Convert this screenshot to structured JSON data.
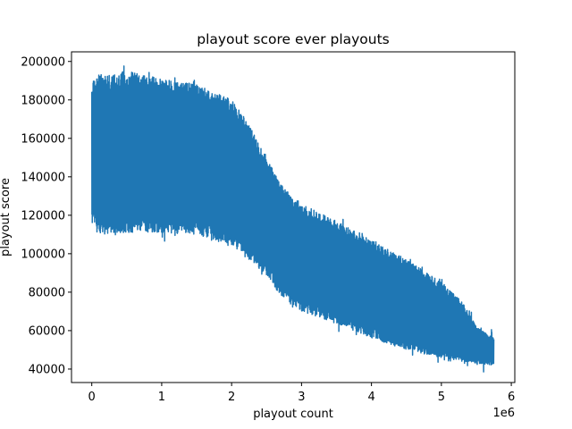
{
  "chart_data": {
    "type": "line",
    "title": "playout score ever playouts",
    "xlabel": "playout count",
    "ylabel": "playout score",
    "x_offset_label": "1e6",
    "xlim": [
      -0.29,
      6.05
    ],
    "ylim": [
      33000,
      205000
    ],
    "x_ticks": [
      0,
      1,
      2,
      3,
      4,
      5,
      6
    ],
    "x_tick_labels": [
      "0",
      "1",
      "2",
      "3",
      "4",
      "5",
      "6"
    ],
    "y_ticks": [
      40000,
      60000,
      80000,
      100000,
      120000,
      140000,
      160000,
      180000,
      200000
    ],
    "y_tick_labels": [
      "40000",
      "60000",
      "80000",
      "100000",
      "120000",
      "140000",
      "160000",
      "180000",
      "200000"
    ],
    "grid": false,
    "series": [
      {
        "color": "#1f77b4",
        "x_unit_note": "x in millions",
        "upper_envelope": [
          [
            0.0,
            190000
          ],
          [
            0.1,
            193000
          ],
          [
            0.5,
            195000
          ],
          [
            1.0,
            191000
          ],
          [
            1.5,
            188000
          ],
          [
            2.0,
            180000
          ],
          [
            2.2,
            170000
          ],
          [
            2.5,
            150000
          ],
          [
            2.7,
            136000
          ],
          [
            3.0,
            126000
          ],
          [
            3.5,
            117000
          ],
          [
            4.0,
            107000
          ],
          [
            4.5,
            97000
          ],
          [
            5.0,
            85000
          ],
          [
            5.3,
            75000
          ],
          [
            5.5,
            62000
          ],
          [
            5.75,
            56000
          ]
        ],
        "lower_envelope": [
          [
            0.0,
            115000
          ],
          [
            0.1,
            110000
          ],
          [
            0.5,
            111000
          ],
          [
            1.0,
            111000
          ],
          [
            1.5,
            110000
          ],
          [
            2.0,
            105000
          ],
          [
            2.2,
            98000
          ],
          [
            2.5,
            89000
          ],
          [
            2.7,
            78000
          ],
          [
            3.0,
            70000
          ],
          [
            3.5,
            64000
          ],
          [
            4.0,
            56000
          ],
          [
            4.5,
            50000
          ],
          [
            5.0,
            46000
          ],
          [
            5.3,
            44000
          ],
          [
            5.5,
            43000
          ],
          [
            5.75,
            42000
          ]
        ]
      }
    ]
  }
}
